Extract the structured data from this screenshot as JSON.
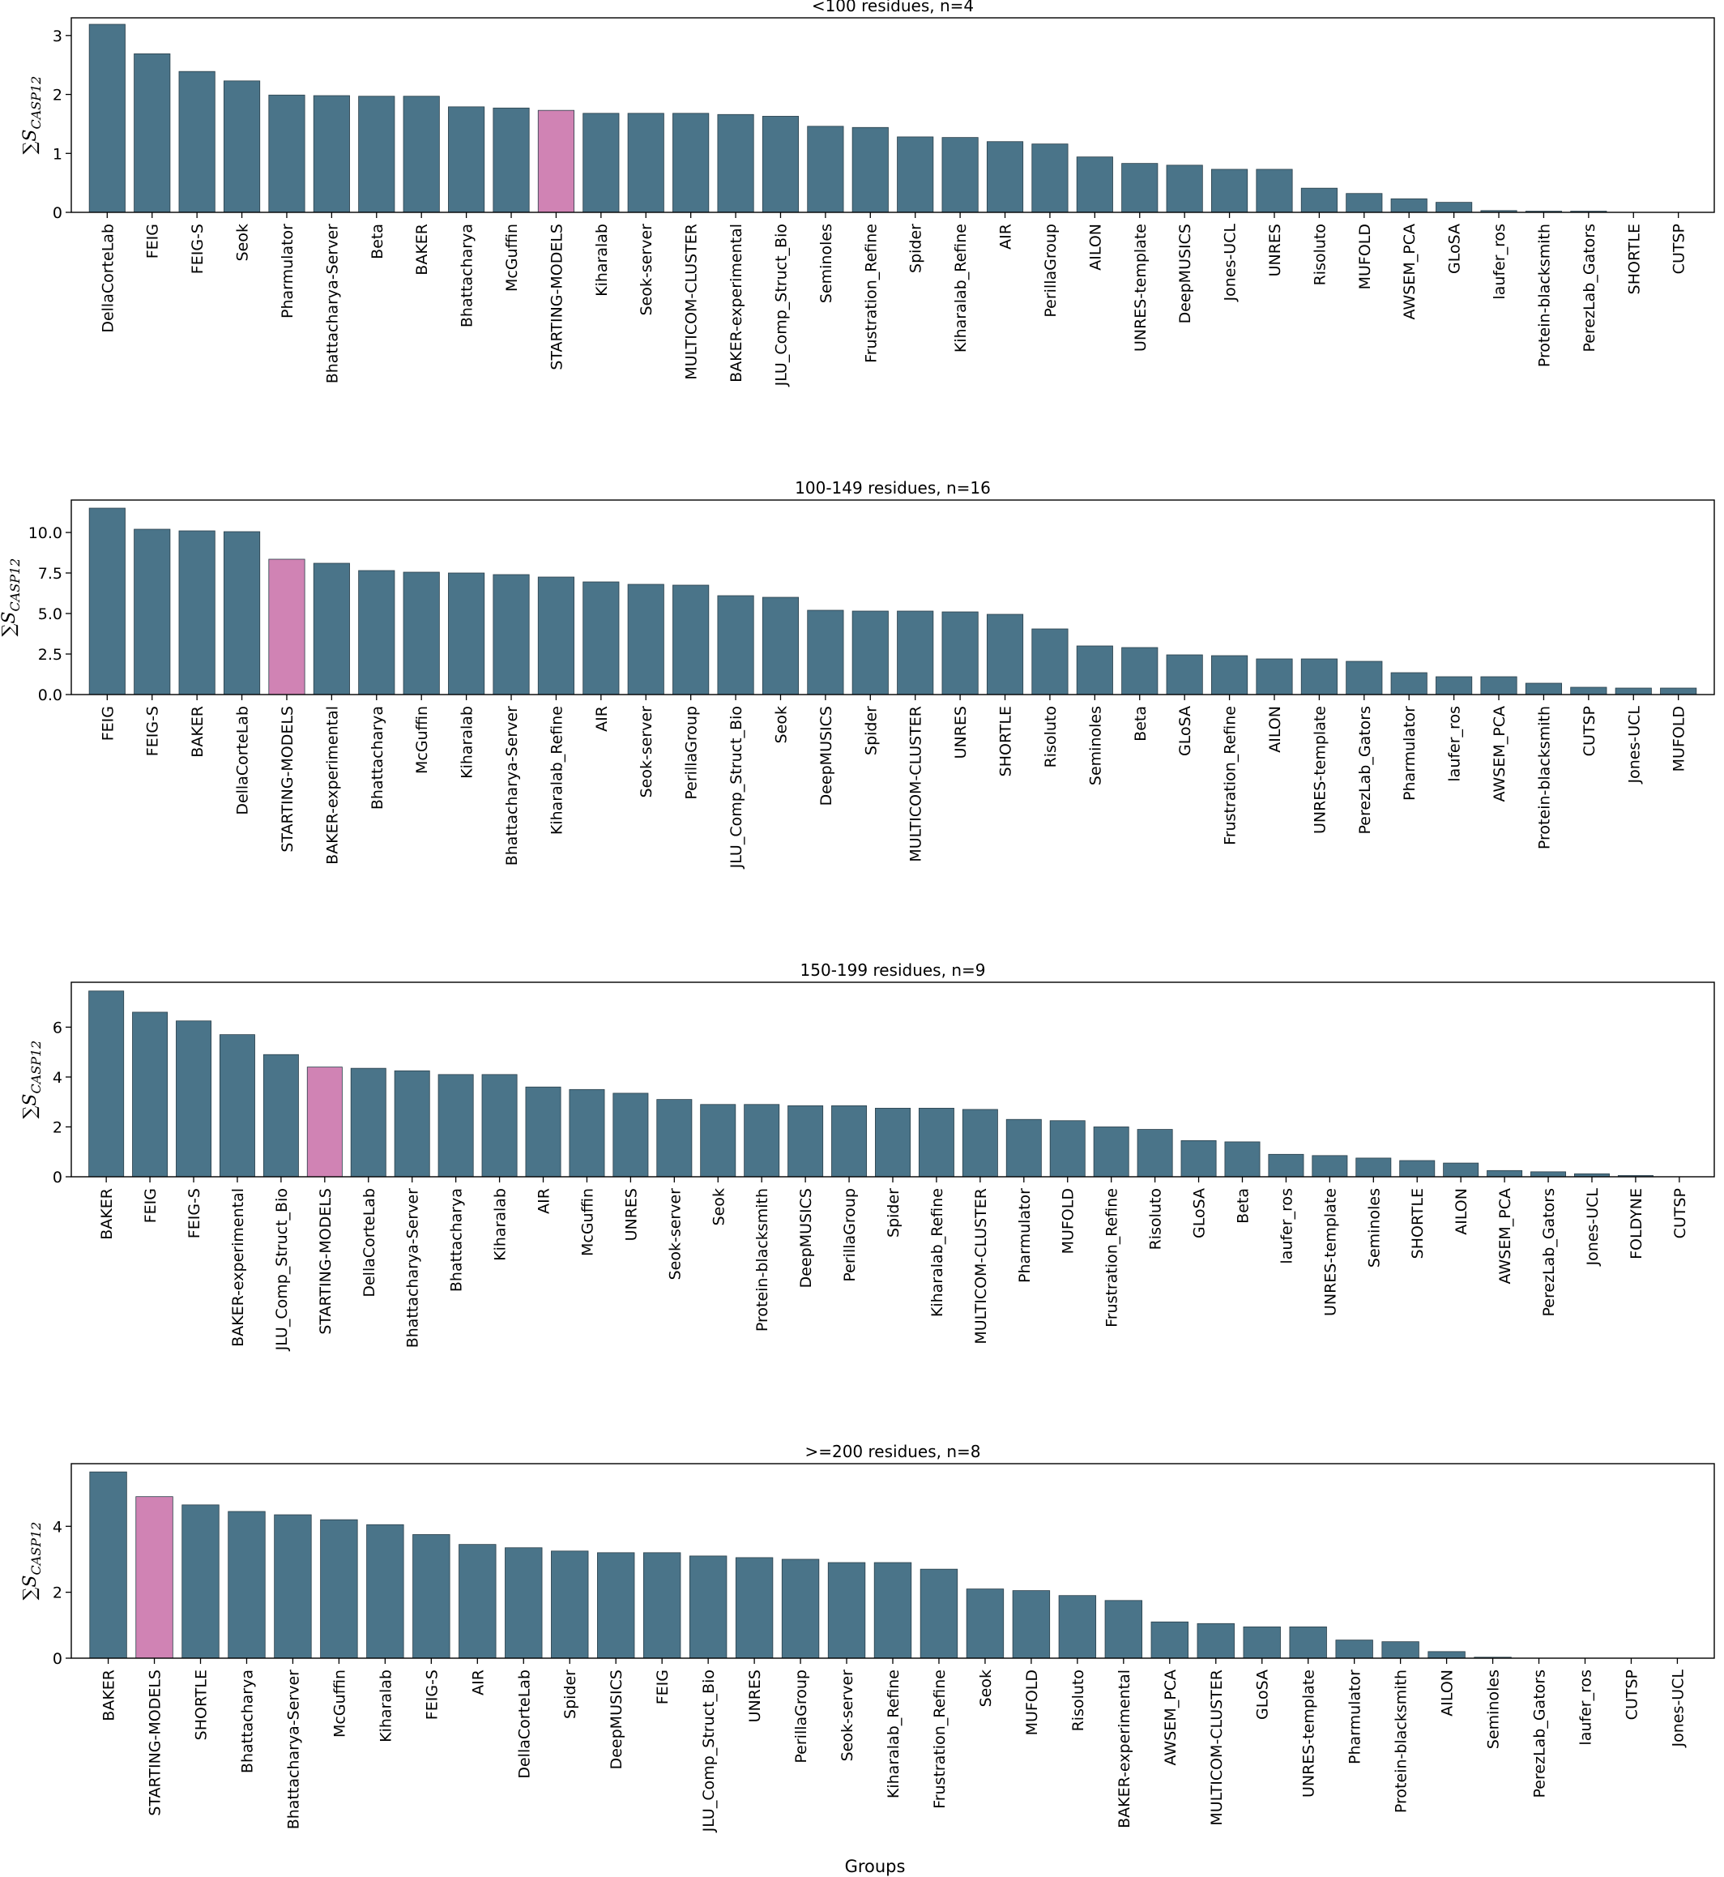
{
  "colors": {
    "bar": "#4a7489",
    "highlight": "#d083b4",
    "bar_edge": "#2a3f4a"
  },
  "figure": {
    "xlabel": "Groups"
  },
  "chart_data": [
    {
      "type": "bar",
      "title": "<100 residues, n=4",
      "ylabel": "∑S_CASP12",
      "ylim": [
        0,
        3.3
      ],
      "yticks": [
        0,
        1,
        2,
        3
      ],
      "yticklabels": [
        "0",
        "1",
        "2",
        "3"
      ],
      "categories": [
        "DellaCorteLab",
        "FEIG",
        "FEIG-S",
        "Seok",
        "Pharmulator",
        "Bhattacharya-Server",
        "Beta",
        "BAKER",
        "Bhattacharya",
        "McGuffin",
        "STARTING-MODELS",
        "Kiharalab",
        "Seok-server",
        "MULTICOM-CLUSTER",
        "BAKER-experimental",
        "JLU_Comp_Struct_Bio",
        "Seminoles",
        "Frustration_Refine",
        "Spider",
        "Kiharalab_Refine",
        "AIR",
        "PerillaGroup",
        "AILON",
        "UNRES-template",
        "DeepMUSICS",
        "Jones-UCL",
        "UNRES",
        "Risoluto",
        "MUFOLD",
        "AWSEM_PCA",
        "GLoSA",
        "laufer_ros",
        "Protein-blacksmith",
        "PerezLab_Gators",
        "SHORTLE",
        "CUTSP"
      ],
      "values": [
        3.19,
        2.69,
        2.39,
        2.23,
        1.99,
        1.98,
        1.97,
        1.97,
        1.79,
        1.77,
        1.73,
        1.68,
        1.68,
        1.68,
        1.66,
        1.63,
        1.46,
        1.44,
        1.28,
        1.27,
        1.2,
        1.16,
        0.94,
        0.83,
        0.8,
        0.73,
        0.73,
        0.41,
        0.32,
        0.23,
        0.17,
        0.03,
        0.02,
        0.02,
        0.0,
        0.0
      ],
      "highlight": "STARTING-MODELS"
    },
    {
      "type": "bar",
      "title": "100-149 residues, n=16",
      "ylabel": "∑S_CASP12",
      "ylim": [
        0,
        12.0
      ],
      "yticks": [
        0,
        2.5,
        5,
        7.5,
        10
      ],
      "yticklabels": [
        "0.0",
        "2.5",
        "5.0",
        "7.5",
        "10.0"
      ],
      "categories": [
        "FEIG",
        "FEIG-S",
        "BAKER",
        "DellaCorteLab",
        "STARTING-MODELS",
        "BAKER-experimental",
        "Bhattacharya",
        "McGuffin",
        "Kiharalab",
        "Bhattacharya-Server",
        "Kiharalab_Refine",
        "AIR",
        "Seok-server",
        "PerillaGroup",
        "JLU_Comp_Struct_Bio",
        "Seok",
        "DeepMUSICS",
        "Spider",
        "MULTICOM-CLUSTER",
        "UNRES",
        "SHORTLE",
        "Risoluto",
        "Seminoles",
        "Beta",
        "GLoSA",
        "Frustration_Refine",
        "AILON",
        "UNRES-template",
        "PerezLab_Gators",
        "Pharmulator",
        "laufer_ros",
        "AWSEM_PCA",
        "Protein-blacksmith",
        "CUTSP",
        "Jones-UCL",
        "MUFOLD"
      ],
      "values": [
        11.5,
        10.2,
        10.1,
        10.05,
        8.35,
        8.1,
        7.65,
        7.55,
        7.5,
        7.4,
        7.25,
        6.95,
        6.8,
        6.75,
        6.1,
        6.0,
        5.2,
        5.15,
        5.15,
        5.1,
        4.95,
        4.05,
        3.0,
        2.9,
        2.45,
        2.4,
        2.2,
        2.2,
        2.05,
        1.35,
        1.1,
        1.1,
        0.7,
        0.45,
        0.4,
        0.4
      ],
      "highlight": "STARTING-MODELS"
    },
    {
      "type": "bar",
      "title": "150-199 residues, n=9",
      "ylabel": "∑S_CASP12",
      "ylim": [
        0,
        7.8
      ],
      "yticks": [
        0,
        2,
        4,
        6
      ],
      "yticklabels": [
        "0",
        "2",
        "4",
        "6"
      ],
      "categories": [
        "BAKER",
        "FEIG",
        "FEIG-S",
        "BAKER-experimental",
        "JLU_Comp_Struct_Bio",
        "STARTING-MODELS",
        "DellaCorteLab",
        "Bhattacharya-Server",
        "Bhattacharya",
        "Kiharalab",
        "AIR",
        "McGuffin",
        "UNRES",
        "Seok-server",
        "Seok",
        "Protein-blacksmith",
        "DeepMUSICS",
        "PerillaGroup",
        "Spider",
        "Kiharalab_Refine",
        "MULTICOM-CLUSTER",
        "Pharmulator",
        "MUFOLD",
        "Frustration_Refine",
        "Risoluto",
        "GLoSA",
        "Beta",
        "laufer_ros",
        "UNRES-template",
        "Seminoles",
        "SHORTLE",
        "AILON",
        "AWSEM_PCA",
        "PerezLab_Gators",
        "Jones-UCL",
        "FOLDYNE",
        "CUTSP"
      ],
      "values": [
        7.45,
        6.6,
        6.25,
        5.7,
        4.9,
        4.4,
        4.35,
        4.25,
        4.1,
        4.1,
        3.6,
        3.5,
        3.35,
        3.1,
        2.9,
        2.9,
        2.85,
        2.85,
        2.75,
        2.75,
        2.7,
        2.3,
        2.25,
        2.0,
        1.9,
        1.45,
        1.4,
        0.9,
        0.85,
        0.75,
        0.65,
        0.55,
        0.25,
        0.2,
        0.12,
        0.05,
        0.0
      ],
      "highlight": "STARTING-MODELS"
    },
    {
      "type": "bar",
      "title": ">=200 residues, n=8",
      "ylabel": "∑S_CASP12",
      "ylim": [
        0,
        5.9
      ],
      "yticks": [
        0,
        2,
        4
      ],
      "yticklabels": [
        "0",
        "2",
        "4"
      ],
      "categories": [
        "BAKER",
        "STARTING-MODELS",
        "SHORTLE",
        "Bhattacharya",
        "Bhattacharya-Server",
        "McGuffin",
        "Kiharalab",
        "FEIG-S",
        "AIR",
        "DellaCorteLab",
        "Spider",
        "DeepMUSICS",
        "FEIG",
        "JLU_Comp_Struct_Bio",
        "UNRES",
        "PerillaGroup",
        "Seok-server",
        "Kiharalab_Refine",
        "Frustration_Refine",
        "Seok",
        "MUFOLD",
        "Risoluto",
        "BAKER-experimental",
        "AWSEM_PCA",
        "MULTICOM-CLUSTER",
        "GLoSA",
        "UNRES-template",
        "Pharmulator",
        "Protein-blacksmith",
        "AILON",
        "Seminoles",
        "PerezLab_Gators",
        "laufer_ros",
        "CUTSP",
        "Jones-UCL"
      ],
      "values": [
        5.65,
        4.9,
        4.65,
        4.45,
        4.35,
        4.2,
        4.05,
        3.75,
        3.45,
        3.35,
        3.25,
        3.2,
        3.2,
        3.1,
        3.05,
        3.0,
        2.9,
        2.9,
        2.7,
        2.1,
        2.05,
        1.9,
        1.75,
        1.1,
        1.05,
        0.95,
        0.95,
        0.55,
        0.5,
        0.2,
        0.03,
        0.0,
        0.0,
        0.0,
        0.0
      ],
      "highlight": "STARTING-MODELS"
    }
  ]
}
